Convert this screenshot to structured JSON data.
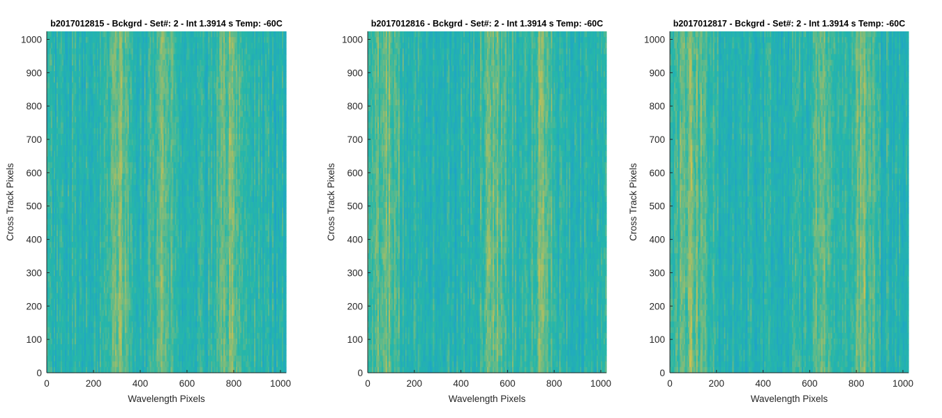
{
  "chart_data": [
    {
      "type": "heatmap",
      "title": "b2017012815 - Bckgrd - Set#: 2 - Int 1.3914 s Temp: -60C",
      "xlabel": "Wavelength Pixels",
      "ylabel": "Cross Track Pixels",
      "xlim": [
        0,
        1024
      ],
      "ylim": [
        0,
        1024
      ],
      "xticks": [
        0,
        200,
        400,
        600,
        800,
        1000
      ],
      "yticks": [
        0,
        100,
        200,
        300,
        400,
        500,
        600,
        700,
        800,
        900,
        1000
      ],
      "colormap": "parula",
      "brighter_bands_x": [
        [
          250,
          350
        ],
        [
          450,
          550
        ],
        [
          720,
          860
        ]
      ],
      "grid": false
    },
    {
      "type": "heatmap",
      "title": "b2017012816 - Bckgrd - Set#: 2 - Int 1.3914 s Temp: -60C",
      "xlabel": "Wavelength Pixels",
      "ylabel": "Cross Track Pixels",
      "xlim": [
        0,
        1024
      ],
      "ylim": [
        0,
        1024
      ],
      "xticks": [
        0,
        200,
        400,
        600,
        800,
        1000
      ],
      "yticks": [
        0,
        100,
        200,
        300,
        400,
        500,
        600,
        700,
        800,
        900,
        1000
      ],
      "colormap": "parula",
      "brighter_bands_x": [
        [
          20,
          140
        ],
        [
          480,
          620
        ],
        [
          700,
          800
        ]
      ],
      "grid": false
    },
    {
      "type": "heatmap",
      "title": "b2017012817 - Bckgrd - Set#: 2 - Int 1.3914 s Temp: -60C",
      "xlabel": "Wavelength Pixels",
      "ylabel": "Cross Track Pixels",
      "xlim": [
        0,
        1024
      ],
      "ylim": [
        0,
        1024
      ],
      "xticks": [
        0,
        200,
        400,
        600,
        800,
        1000
      ],
      "yticks": [
        0,
        100,
        200,
        300,
        400,
        500,
        600,
        700,
        800,
        900,
        1000
      ],
      "colormap": "parula",
      "brighter_bands_x": [
        [
          20,
          180
        ],
        [
          600,
          700
        ],
        [
          780,
          880
        ]
      ],
      "grid": false
    }
  ],
  "colors": {
    "background": "#ffffff",
    "axis": "#262626",
    "heatmap_low": "#1a9bd6",
    "heatmap_mid": "#27b7a8",
    "heatmap_high": "#d9c04b"
  }
}
